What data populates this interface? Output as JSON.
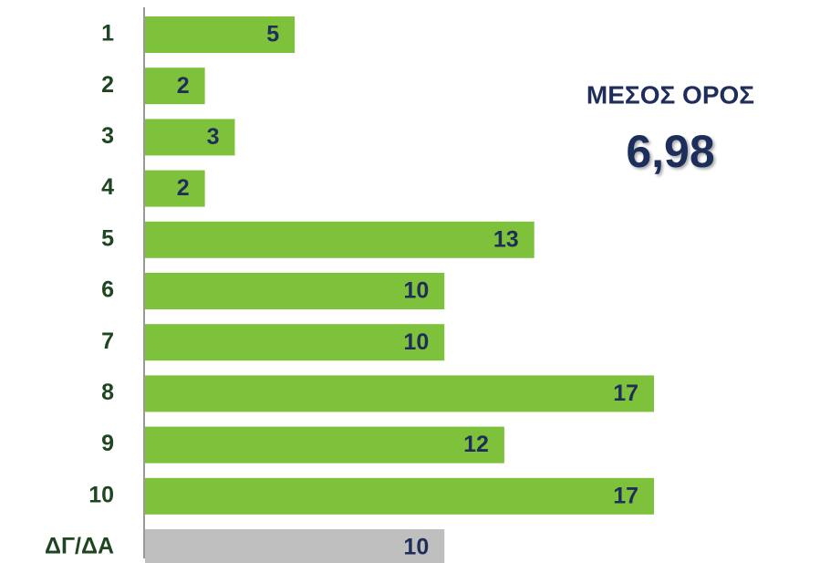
{
  "chart_data": {
    "type": "bar",
    "orientation": "horizontal",
    "categories": [
      "1",
      "2",
      "3",
      "4",
      "5",
      "6",
      "7",
      "8",
      "9",
      "10",
      "ΔΓ/ΔΑ"
    ],
    "values": [
      5,
      2,
      3,
      2,
      13,
      10,
      10,
      17,
      12,
      17,
      10
    ],
    "colors": [
      "#7dc23a",
      "#7dc23a",
      "#7dc23a",
      "#7dc23a",
      "#7dc23a",
      "#7dc23a",
      "#7dc23a",
      "#7dc23a",
      "#7dc23a",
      "#7dc23a",
      "#bfbfbf"
    ],
    "annotations": [
      "ΜΕΣΟΣ ΟΡΟΣ",
      "6,98"
    ]
  }
}
